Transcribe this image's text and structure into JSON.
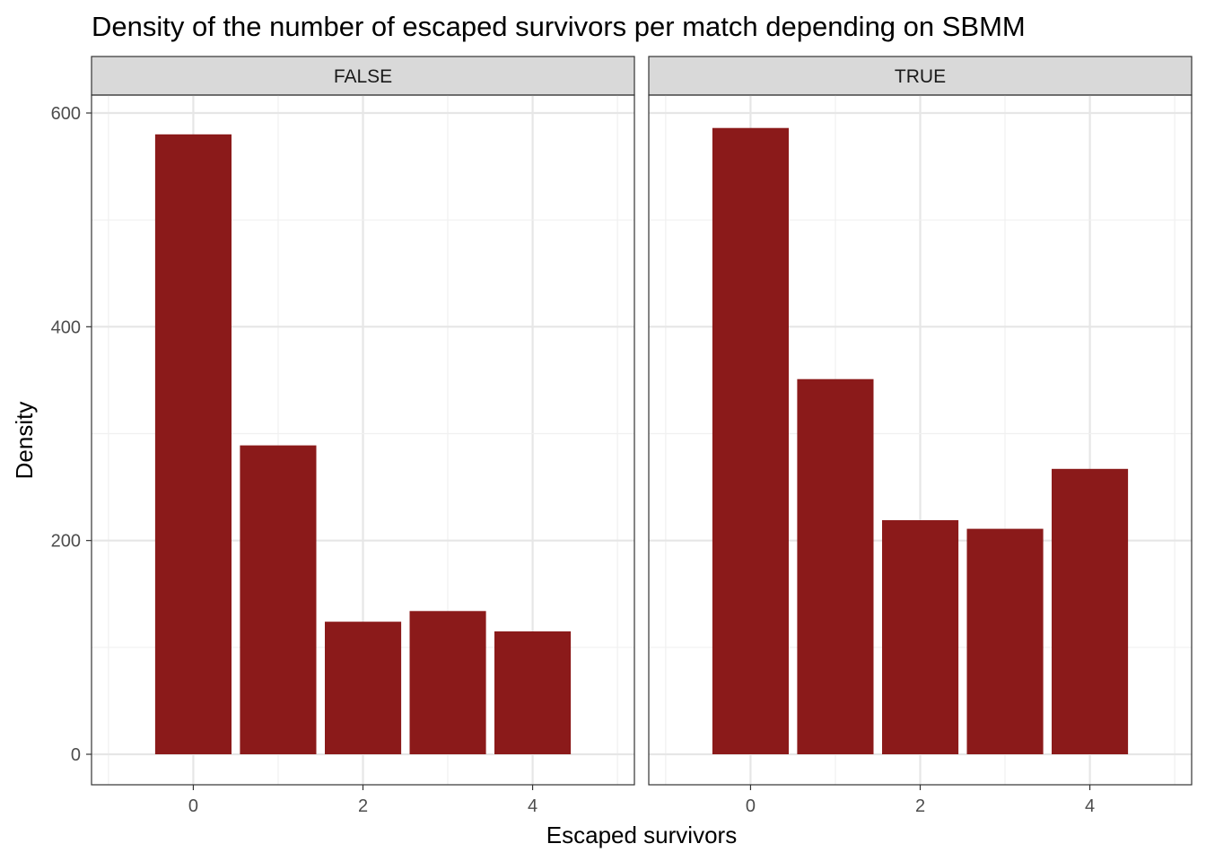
{
  "chart_data": {
    "type": "bar",
    "title": "Density of the number of escaped survivors per match depending on SBMM",
    "xlabel": "Escaped survivors",
    "ylabel": "Density",
    "x_ticks": [
      0,
      2,
      4
    ],
    "y_ticks": [
      0,
      200,
      400,
      600
    ],
    "xlim": [
      -1.2,
      5.2
    ],
    "ylim": [
      -28,
      600
    ],
    "grid": true,
    "bar_color": "#8B1A1A",
    "facets": [
      {
        "label": "FALSE",
        "x": [
          0,
          1,
          2,
          3,
          4
        ],
        "values": [
          580,
          289,
          124,
          134,
          115
        ]
      },
      {
        "label": "TRUE",
        "x": [
          0,
          1,
          2,
          3,
          4
        ],
        "values": [
          586,
          351,
          219,
          211,
          267
        ]
      }
    ]
  }
}
